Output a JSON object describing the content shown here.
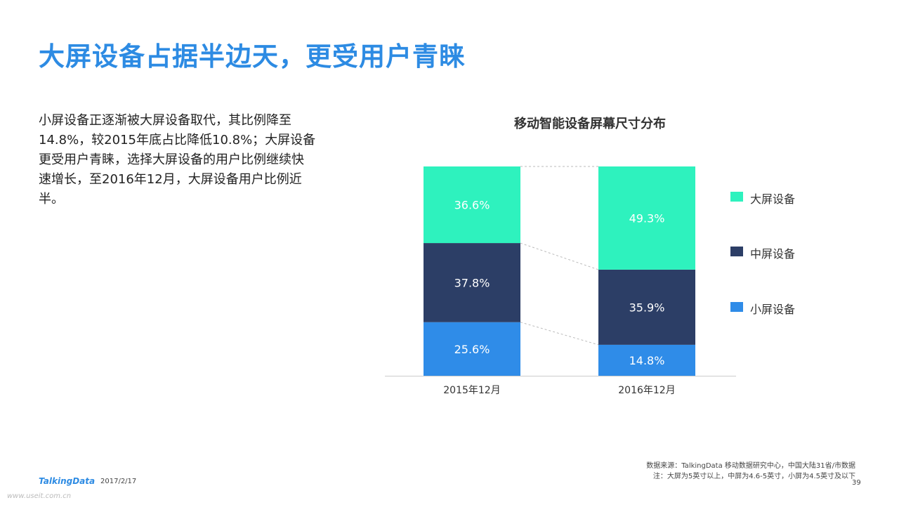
{
  "title": "大屏设备占据半边天，更受用户青睐",
  "description": "小屏设备正逐渐被大屏设备取代，其比例降至14.8%，较2015年底占比降低10.8%；大屏设备更受用户青睐，选择大屏设备的用户比例继续快速增长，至2016年12月，大屏设备用户比例近半。",
  "chart_data": {
    "type": "bar",
    "stacked": true,
    "title": "移动智能设备屏幕尺寸分布",
    "categories": [
      "2015年12月",
      "2016年12月"
    ],
    "series": [
      {
        "name": "小屏设备",
        "values": [
          25.6,
          14.8
        ],
        "labels": [
          "25.6%",
          "14.8%"
        ],
        "color": "#2f8ce8"
      },
      {
        "name": "中屏设备",
        "values": [
          37.8,
          35.9
        ],
        "labels": [
          "37.8%",
          "35.9%"
        ],
        "color": "#2c3e66"
      },
      {
        "name": "大屏设备",
        "values": [
          36.6,
          49.3
        ],
        "labels": [
          "36.6%",
          "49.3%"
        ],
        "color": "#2ef2be"
      }
    ],
    "legend_order": [
      "大屏设备",
      "中屏设备",
      "小屏设备"
    ],
    "legend_position": "right",
    "ylim": [
      0,
      100
    ],
    "grid": false
  },
  "footer": {
    "source": "数据来源：TalkingData 移动数据研究中心，中国大陆31省/市数据",
    "note": "注：大屏为5英寸以上，中屏为4.6-5英寸，小屏为4.5英寸及以下",
    "page": "39",
    "logo": "TalkingData",
    "date": "2017/2/17",
    "watermark": "www.useit.com.cn"
  }
}
